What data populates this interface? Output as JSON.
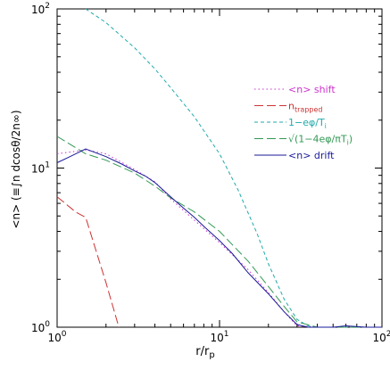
{
  "chart_data": {
    "type": "line",
    "xlabel": "r/r",
    "xlabel_sub": "p",
    "ylabel": "<n> (≡∫n dcosθ/2n∞)",
    "xscale": "log",
    "yscale": "log",
    "xlim": [
      1,
      100
    ],
    "ylim": [
      1,
      100
    ],
    "x_ticks": [
      {
        "value": 1,
        "base": "10",
        "exp": "0"
      },
      {
        "value": 10,
        "base": "10",
        "exp": "1"
      },
      {
        "value": 100,
        "base": "10",
        "exp": "2"
      }
    ],
    "y_ticks": [
      {
        "value": 1,
        "base": "10",
        "exp": "0"
      },
      {
        "value": 10,
        "base": "10",
        "exp": "1"
      },
      {
        "value": 100,
        "base": "10",
        "exp": "2"
      }
    ],
    "legend_position": "right-middle",
    "series": [
      {
        "name": "<n> shift",
        "color": "#cc33cc",
        "dash": "dotted",
        "x": [
          1.0,
          1.5,
          2.0,
          3.0,
          4.0,
          5.0,
          7.0,
          10.0,
          15.0,
          20.0,
          25.0,
          30.0,
          40.0,
          60.0,
          80.0,
          100.0
        ],
        "y": [
          12.3,
          13.0,
          12.3,
          9.8,
          8.2,
          6.4,
          4.7,
          3.4,
          2.3,
          1.65,
          1.25,
          1.02,
          1.0,
          1.0,
          1.0,
          1.0
        ]
      },
      {
        "name": "n",
        "name_sub": "trapped",
        "color": "#cc3333",
        "dash": "longdash",
        "x": [
          1.0,
          1.3,
          1.5,
          2.0,
          2.4
        ],
        "y": [
          6.6,
          5.3,
          4.9,
          1.9,
          1.0
        ]
      },
      {
        "name": "1−eφ/T",
        "name_sub": "i",
        "color": "#22aaaa",
        "dash": "dashed",
        "x": [
          1.5,
          2.0,
          3.0,
          4.0,
          5.0,
          7.0,
          10.0,
          13.0,
          17.0,
          20.0,
          25.0,
          30.0,
          35.0,
          40.0,
          60.0,
          80.0,
          100.0
        ],
        "y": [
          100,
          82,
          57,
          42,
          32,
          21,
          12.3,
          7.3,
          3.9,
          2.5,
          1.5,
          1.12,
          1.02,
          1.0,
          1.0,
          1.0,
          1.0
        ]
      },
      {
        "name": "√(1−4eφ/πT",
        "name_sub": "i",
        "name_suffix": ")",
        "color": "#339955",
        "dash": "longdash",
        "x": [
          1.0,
          1.5,
          2.0,
          3.0,
          4.0,
          5.0,
          7.0,
          10.0,
          15.0,
          20.0,
          25.0,
          30.0,
          40.0,
          60.0,
          80.0,
          100.0
        ],
        "y": [
          15.8,
          12.3,
          11.2,
          9.3,
          7.7,
          6.5,
          5.3,
          4.0,
          2.6,
          1.8,
          1.35,
          1.08,
          1.0,
          1.0,
          1.0,
          1.0
        ]
      },
      {
        "name": "<n> drift",
        "color": "#1a1a99",
        "dash": "solid",
        "x": [
          1.0,
          1.2,
          1.5,
          2.0,
          2.5,
          3.0,
          3.5,
          4.0,
          5.0,
          6.0,
          7.0,
          8.0,
          10.0,
          12.0,
          15.0,
          20.0,
          25.0,
          30.0,
          35.0,
          40.0,
          50.0,
          60.0,
          80.0,
          100.0
        ],
        "y": [
          10.8,
          11.8,
          13.2,
          11.8,
          10.6,
          9.6,
          8.9,
          8.1,
          6.6,
          5.6,
          4.9,
          4.3,
          3.5,
          2.9,
          2.2,
          1.62,
          1.25,
          1.04,
          1.0,
          1.0,
          1.0,
          1.02,
          1.0,
          1.0
        ]
      }
    ]
  }
}
